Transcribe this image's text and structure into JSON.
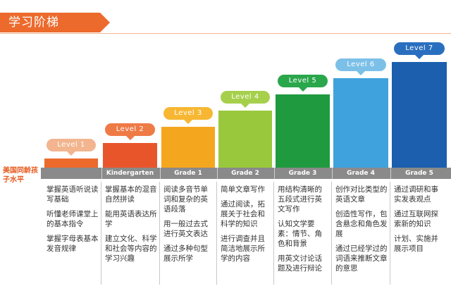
{
  "title": "学习阶梯",
  "age_label": "美国同龄孩子水平",
  "levels": [
    {
      "label": "Level 1",
      "grade": "",
      "color": "#ec6a2c",
      "pill_color": "#f2b58f",
      "items": [
        "掌握英语听说读写基础",
        "听懂老师课堂上的基本指令",
        "掌握字母表基本发音规律"
      ]
    },
    {
      "label": "Level 2",
      "grade": "Kindergarten",
      "color": "#e8552a",
      "pill_color": "#ee7a45",
      "items": [
        "掌握基本的混音自然拼读",
        "能用英语表达所学",
        "建立文化、科学和社会等内容的学习兴趣"
      ]
    },
    {
      "label": "Level 3",
      "grade": "Grade 1",
      "color": "#f5a61f",
      "pill_color": "#f7b733",
      "items": [
        "阅读多音节单词和复杂的英语段落",
        "用一般过去式进行英文表达",
        "通过多种句型展示所学"
      ]
    },
    {
      "label": "Level 4",
      "grade": "Grade 2",
      "color": "#99c83c",
      "pill_color": "#a6d04c",
      "items": [
        "简单文章写作",
        "通过阅读，拓展关于社会和科学的知识",
        "进行调查并且简洁地展示所学的内容"
      ]
    },
    {
      "label": "Level 5",
      "grade": "Grade 3",
      "color": "#1f9a3f",
      "pill_color": "#2aa64b",
      "items": [
        "用结构清晰的五段式进行英文写作",
        "认知文学要素：情节、角色和背景",
        "用英文讨论话题及进行辩论"
      ]
    },
    {
      "label": "Level 6",
      "grade": "Grade 4",
      "color": "#3fa2dc",
      "pill_color": "#7cc0e8",
      "items": [
        "创作对比类型的英语文章",
        "创造性写作，包含悬念和角色发展",
        "通过已经学过的词语来推断文章的意思"
      ]
    },
    {
      "label": "Level 7",
      "grade": "Grade 5",
      "color": "#1b5fae",
      "pill_color": "#2a6fbf",
      "items": [
        "通过调研和事实发表观点",
        "通过互联网探索新的知识",
        "计划、实施并展示项目"
      ]
    }
  ]
}
